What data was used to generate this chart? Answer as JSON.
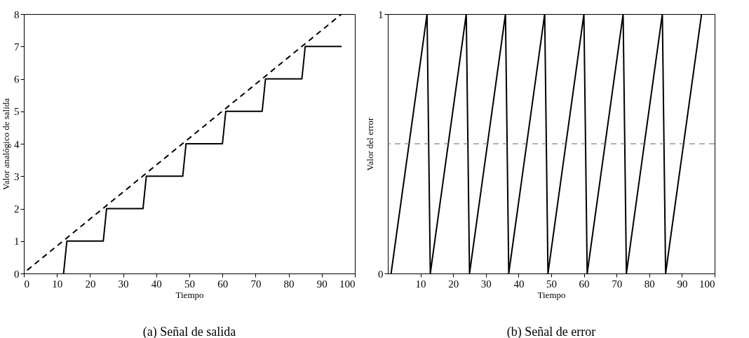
{
  "chart_data": [
    {
      "type": "line",
      "title": "(a) Señal de salida",
      "xlabel": "Tiempo",
      "ylabel": "Valor analógico de salida",
      "xlim": [
        0,
        100
      ],
      "xticks": [
        0,
        10,
        20,
        30,
        40,
        50,
        60,
        70,
        80,
        90,
        100
      ],
      "ylim": [
        0,
        8
      ],
      "yticks": [
        0,
        1,
        2,
        3,
        4,
        5,
        6,
        7,
        8
      ],
      "grid": false,
      "series": [
        {
          "color": "#000000",
          "line_style": "solid",
          "x": [
            12,
            13,
            24,
            25,
            36,
            37,
            48,
            49,
            60,
            61,
            72,
            73,
            84,
            85,
            96
          ],
          "values": [
            0,
            1,
            1,
            2,
            2,
            3,
            3,
            4,
            4,
            5,
            5,
            6,
            6,
            7,
            7
          ]
        },
        {
          "color": "#000000",
          "line_style": "dashed",
          "x": [
            1,
            96
          ],
          "values": [
            0.1,
            8
          ]
        }
      ]
    },
    {
      "type": "line",
      "title": "(b) Señal de error",
      "xlabel": "Tiempo",
      "ylabel": "Valor del error",
      "xlim": [
        0,
        100
      ],
      "xticks": [
        10,
        20,
        30,
        40,
        50,
        60,
        70,
        80,
        90,
        100
      ],
      "ylim": [
        0,
        1
      ],
      "yticks": [
        0,
        1
      ],
      "grid": false,
      "series": [
        {
          "color": "#000000",
          "line_style": "solid",
          "x": [
            1,
            12,
            13,
            24,
            25,
            36,
            37,
            48,
            49,
            60,
            61,
            72,
            73,
            84,
            85,
            96
          ],
          "values": [
            0,
            1,
            0,
            1,
            0,
            1,
            0,
            1,
            0,
            1,
            0,
            1,
            0,
            1,
            0,
            1
          ]
        }
      ],
      "ref_lines": [
        {
          "axis": "y",
          "value": 0.5,
          "color": "#666666",
          "line_style": "dashed"
        }
      ]
    }
  ]
}
